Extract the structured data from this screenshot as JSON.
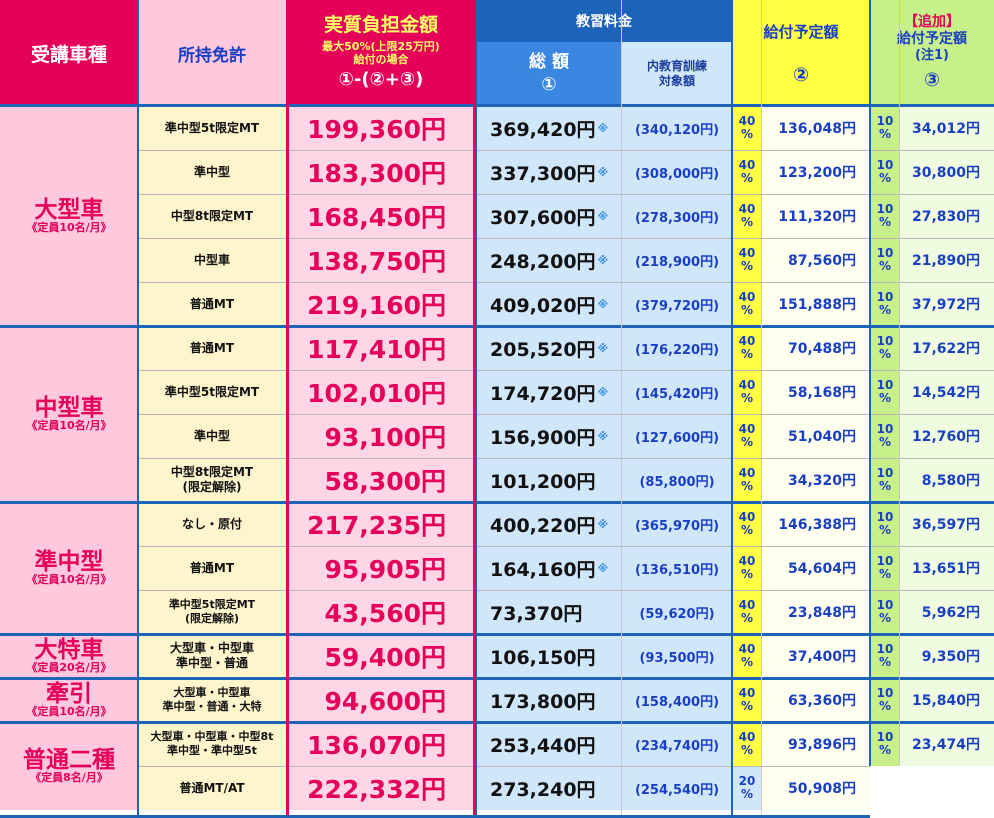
{
  "header": {
    "vehicle": "受講車種",
    "license": "所持免許",
    "burden_title": "実質負担金額",
    "burden_note1": "最大50%(上限25万円)",
    "burden_note2": "給付の場合",
    "burden_formula": "①-(②+③)",
    "fee_group": "教習料金",
    "fee_total": "総 額",
    "fee_total_num": "①",
    "fee_sub1": "内教育訓練",
    "fee_sub2": "対象額",
    "benefit": "給付予定額",
    "benefit_num": "②",
    "add_tag": "【追加】",
    "add_benefit": "給付予定額",
    "add_note": "(注1)",
    "add_num": "③"
  },
  "groups": [
    {
      "name": "大型車",
      "cap": "《定員10名/月》",
      "rows": 5
    },
    {
      "name": "中型車",
      "cap": "《定員10名/月》",
      "rows": 4
    },
    {
      "name": "準中型",
      "cap": "《定員10名/月》",
      "rows": 3
    },
    {
      "name": "大特車",
      "cap": "《定員20名/月》",
      "rows": 1
    },
    {
      "name": "牽引",
      "cap": "《定員10名/月》",
      "rows": 1
    },
    {
      "name": "普通二種",
      "cap": "《定員8名/月》",
      "rows": 2
    }
  ],
  "rows": [
    {
      "license": [
        "準中型5t限定MT"
      ],
      "burden": "199,360円",
      "total": "369,420円",
      "mark": "※",
      "sub": "(340,120円)",
      "pct": [
        "40",
        "%"
      ],
      "benefit": "136,048円",
      "add_pct": [
        "10",
        "%"
      ],
      "add": "34,012円"
    },
    {
      "license": [
        "準中型"
      ],
      "burden": "183,300円",
      "total": "337,300円",
      "mark": "※",
      "sub": "(308,000円)",
      "pct": [
        "40",
        "%"
      ],
      "benefit": "123,200円",
      "add_pct": [
        "10",
        "%"
      ],
      "add": "30,800円"
    },
    {
      "license": [
        "中型8t限定MT"
      ],
      "burden": "168,450円",
      "total": "307,600円",
      "mark": "※",
      "sub": "(278,300円)",
      "pct": [
        "40",
        "%"
      ],
      "benefit": "111,320円",
      "add_pct": [
        "10",
        "%"
      ],
      "add": "27,830円"
    },
    {
      "license": [
        "中型車"
      ],
      "burden": "138,750円",
      "total": "248,200円",
      "mark": "※",
      "sub": "(218,900円)",
      "pct": [
        "40",
        "%"
      ],
      "benefit": "87,560円",
      "add_pct": [
        "10",
        "%"
      ],
      "add": "21,890円"
    },
    {
      "license": [
        "普通MT"
      ],
      "burden": "219,160円",
      "total": "409,020円",
      "mark": "※",
      "sub": "(379,720円)",
      "pct": [
        "40",
        "%"
      ],
      "benefit": "151,888円",
      "add_pct": [
        "10",
        "%"
      ],
      "add": "37,972円"
    },
    {
      "license": [
        "普通MT"
      ],
      "burden": "117,410円",
      "total": "205,520円",
      "mark": "※",
      "sub": "(176,220円)",
      "pct": [
        "40",
        "%"
      ],
      "benefit": "70,488円",
      "add_pct": [
        "10",
        "%"
      ],
      "add": "17,622円"
    },
    {
      "license": [
        "準中型5t限定MT"
      ],
      "burden": "102,010円",
      "total": "174,720円",
      "mark": "※",
      "sub": "(145,420円)",
      "pct": [
        "40",
        "%"
      ],
      "benefit": "58,168円",
      "add_pct": [
        "10",
        "%"
      ],
      "add": "14,542円"
    },
    {
      "license": [
        "準中型"
      ],
      "burden": "93,100円",
      "total": "156,900円",
      "mark": "※",
      "sub": "(127,600円)",
      "pct": [
        "40",
        "%"
      ],
      "benefit": "51,040円",
      "add_pct": [
        "10",
        "%"
      ],
      "add": "12,760円"
    },
    {
      "license": [
        "中型8t限定MT",
        "(限定解除)"
      ],
      "burden": "58,300円",
      "total": "101,200円",
      "mark": "",
      "sub": "(85,800円)",
      "pct": [
        "40",
        "%"
      ],
      "benefit": "34,320円",
      "add_pct": [
        "10",
        "%"
      ],
      "add": "8,580円"
    },
    {
      "license": [
        "なし・原付"
      ],
      "burden": "217,235円",
      "total": "400,220円",
      "mark": "※",
      "sub": "(365,970円)",
      "pct": [
        "40",
        "%"
      ],
      "benefit": "146,388円",
      "add_pct": [
        "10",
        "%"
      ],
      "add": "36,597円"
    },
    {
      "license": [
        "普通MT"
      ],
      "burden": "95,905円",
      "total": "164,160円",
      "mark": "※",
      "sub": "(136,510円)",
      "pct": [
        "40",
        "%"
      ],
      "benefit": "54,604円",
      "add_pct": [
        "10",
        "%"
      ],
      "add": "13,651円"
    },
    {
      "license": [
        "準中型5t限定MT",
        "(限定解除)"
      ],
      "burden": "43,560円",
      "total": "73,370円",
      "mark": "",
      "sub": "(59,620円)",
      "pct": [
        "40",
        "%"
      ],
      "benefit": "23,848円",
      "add_pct": [
        "10",
        "%"
      ],
      "add": "5,962円"
    },
    {
      "license": [
        "大型車・中型車",
        "準中型・普通"
      ],
      "burden": "59,400円",
      "total": "106,150円",
      "mark": "",
      "sub": "(93,500円)",
      "pct": [
        "40",
        "%"
      ],
      "benefit": "37,400円",
      "add_pct": [
        "10",
        "%"
      ],
      "add": "9,350円"
    },
    {
      "license": [
        "大型車・中型車",
        "準中型・普通・大特"
      ],
      "burden": "94,600円",
      "total": "173,800円",
      "mark": "",
      "sub": "(158,400円)",
      "pct": [
        "40",
        "%"
      ],
      "benefit": "63,360円",
      "add_pct": [
        "10",
        "%"
      ],
      "add": "15,840円"
    },
    {
      "license": [
        "大型車・中型車・中型8t",
        "準中型・準中型5t"
      ],
      "burden": "136,070円",
      "total": "253,440円",
      "mark": "",
      "sub": "(234,740円)",
      "pct": [
        "40",
        "%"
      ],
      "benefit": "93,896円",
      "add_pct": [
        "10",
        "%"
      ],
      "add": "23,474円"
    },
    {
      "license": [
        "普通MT/AT"
      ],
      "burden": "222,332円",
      "total": "273,240円",
      "mark": "",
      "sub": "(254,540円)",
      "pct": [
        "20",
        "%"
      ],
      "benefit": "50,908円",
      "add_pct": null,
      "add": null
    }
  ],
  "colors": {
    "red": "#e5005a",
    "blue": "#1d63b8",
    "yellow": "#ffff44",
    "green": "#c8f08a",
    "pink": "#ffc8dc"
  }
}
